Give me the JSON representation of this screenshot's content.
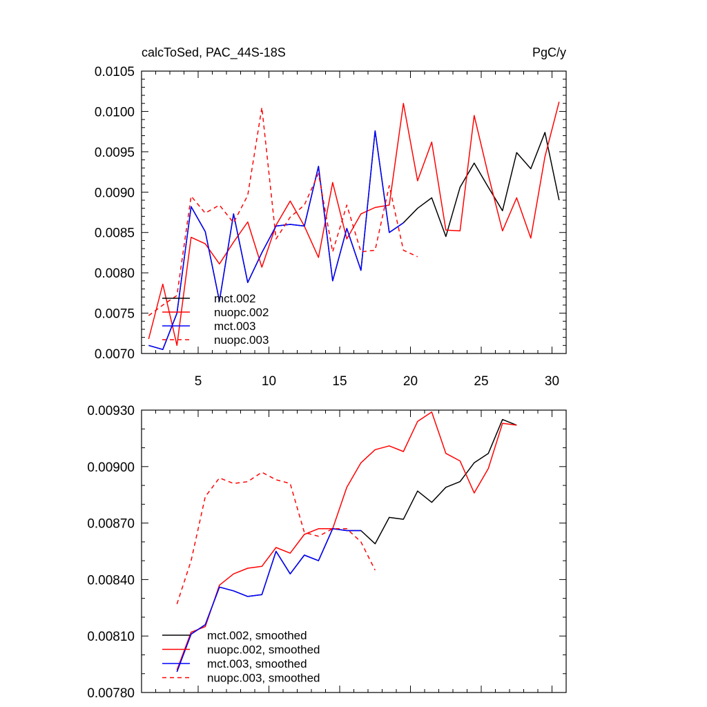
{
  "chart_data": [
    {
      "type": "line",
      "title": "calcToSed, PAC_44S-18S",
      "units": "PgC/y",
      "xlim": [
        1,
        31
      ],
      "ylim": [
        0.007,
        0.0105
      ],
      "xticks": [
        5,
        10,
        15,
        20,
        25,
        30
      ],
      "xtick_labels": [
        "5",
        "10",
        "15",
        "20",
        "25",
        "30"
      ],
      "yticks": [
        0.007,
        0.0075,
        0.008,
        0.0085,
        0.009,
        0.0095,
        0.01,
        0.0105
      ],
      "ytick_labels": [
        "0.0070",
        "0.0075",
        "0.0080",
        "0.0085",
        "0.0090",
        "0.0095",
        "0.0100",
        "0.0105"
      ],
      "legend_position": "bottom-left",
      "series": [
        {
          "name": "mct.002",
          "color": "#000000",
          "dash": "solid",
          "x": [
            1.5,
            2.5,
            3.5,
            4.5,
            5.5,
            6.5,
            7.5,
            8.5,
            9.5,
            10.5,
            11.5,
            12.5,
            13.5,
            14.5,
            15.5,
            16.5,
            17.5,
            18.5,
            19.5,
            20.5,
            21.5,
            22.5,
            23.5,
            24.5,
            25.5,
            26.5,
            27.5,
            28.5,
            29.5,
            30.5
          ],
          "values": [
            0.0071,
            0.00705,
            0.0075,
            0.00882,
            0.00851,
            0.00765,
            0.00873,
            0.00788,
            0.00825,
            0.00858,
            0.0086,
            0.00858,
            0.00932,
            0.0079,
            0.00855,
            0.00803,
            0.00976,
            0.0085,
            0.00862,
            0.0088,
            0.00893,
            0.00845,
            0.00906,
            0.00936,
            0.00906,
            0.00877,
            0.00949,
            0.00929,
            0.00974,
            0.0089
          ]
        },
        {
          "name": "nuopc.002",
          "color": "#ff0000",
          "dash": "solid",
          "x": [
            1.5,
            2.5,
            3.5,
            4.5,
            5.5,
            6.5,
            7.5,
            8.5,
            9.5,
            10.5,
            11.5,
            12.5,
            13.5,
            14.5,
            15.5,
            16.5,
            17.5,
            18.5,
            19.5,
            20.5,
            21.5,
            22.5,
            23.5,
            24.5,
            25.5,
            26.5,
            27.5,
            28.5,
            29.5,
            30.5
          ],
          "values": [
            0.00718,
            0.00786,
            0.0071,
            0.00844,
            0.00836,
            0.00811,
            0.00838,
            0.00863,
            0.00807,
            0.00859,
            0.00889,
            0.00858,
            0.00819,
            0.00912,
            0.00842,
            0.00873,
            0.00881,
            0.00884,
            0.0101,
            0.00914,
            0.00962,
            0.00853,
            0.00852,
            0.00995,
            0.00921,
            0.00852,
            0.00893,
            0.00843,
            0.00944,
            0.01012
          ]
        },
        {
          "name": "mct.003",
          "color": "#0000ff",
          "dash": "solid",
          "x": [
            1.5,
            2.5,
            3.5,
            4.5,
            5.5,
            6.5,
            7.5,
            8.5,
            9.5,
            10.5,
            11.5,
            12.5,
            13.5,
            14.5,
            15.5,
            16.5,
            17.5,
            18.5,
            19.5
          ],
          "values": [
            0.0071,
            0.00705,
            0.0075,
            0.00882,
            0.00851,
            0.00765,
            0.00873,
            0.00788,
            0.00825,
            0.00858,
            0.0086,
            0.00858,
            0.00932,
            0.0079,
            0.00855,
            0.00803,
            0.00976,
            0.0085,
            0.00862
          ]
        },
        {
          "name": "nuopc.003",
          "color": "#ff0000",
          "dash": "dashed",
          "x": [
            1.5,
            2.5,
            3.5,
            4.5,
            5.5,
            6.5,
            7.5,
            8.5,
            9.5,
            10.5,
            11.5,
            12.5,
            13.5,
            14.5,
            15.5,
            16.5,
            17.5,
            18.5,
            19.5,
            20.5
          ],
          "values": [
            0.00747,
            0.0076,
            0.00772,
            0.00895,
            0.00874,
            0.00884,
            0.00862,
            0.00896,
            0.01005,
            0.00842,
            0.00869,
            0.00884,
            0.00923,
            0.00826,
            0.00884,
            0.00826,
            0.00828,
            0.00908,
            0.00828,
            0.0082
          ]
        }
      ]
    },
    {
      "type": "line",
      "title": "",
      "xlim": [
        1,
        31
      ],
      "ylim": [
        0.0078,
        0.0093
      ],
      "xticks": [
        5,
        10,
        15,
        20,
        25,
        30
      ],
      "yticks": [
        0.0078,
        0.0081,
        0.0084,
        0.0087,
        0.009,
        0.0093
      ],
      "ytick_labels": [
        "0.00780",
        "0.00810",
        "0.00840",
        "0.00870",
        "0.00900",
        "0.00930"
      ],
      "legend_position": "bottom-left",
      "series": [
        {
          "name": "mct.002, smoothed",
          "color": "#000000",
          "dash": "solid",
          "x": [
            3.5,
            4.5,
            5.5,
            6.5,
            7.5,
            8.5,
            9.5,
            10.5,
            11.5,
            12.5,
            13.5,
            14.5,
            15.5,
            16.5,
            17.5,
            18.5,
            19.5,
            20.5,
            21.5,
            22.5,
            23.5,
            24.5,
            25.5,
            26.5,
            27.5
          ],
          "values": [
            0.00791,
            0.00811,
            0.00816,
            0.00836,
            0.00834,
            0.00831,
            0.00832,
            0.00855,
            0.00843,
            0.00853,
            0.0085,
            0.00867,
            0.00866,
            0.00866,
            0.00859,
            0.00873,
            0.00872,
            0.00887,
            0.00881,
            0.00889,
            0.00892,
            0.00902,
            0.00907,
            0.00925,
            0.00922
          ]
        },
        {
          "name": "nuopc.002, smoothed",
          "color": "#ff0000",
          "dash": "solid",
          "x": [
            3.5,
            4.5,
            5.5,
            6.5,
            7.5,
            8.5,
            9.5,
            10.5,
            11.5,
            12.5,
            13.5,
            14.5,
            15.5,
            16.5,
            17.5,
            18.5,
            19.5,
            20.5,
            21.5,
            22.5,
            23.5,
            24.5,
            25.5,
            26.5,
            27.5
          ],
          "values": [
            0.00792,
            0.00812,
            0.00815,
            0.00837,
            0.00843,
            0.00846,
            0.00847,
            0.00857,
            0.00854,
            0.00864,
            0.00867,
            0.00867,
            0.00889,
            0.00902,
            0.00909,
            0.00911,
            0.00908,
            0.00924,
            0.00929,
            0.00907,
            0.00903,
            0.00886,
            0.00899,
            0.00923,
            0.00922
          ]
        },
        {
          "name": "mct.003, smoothed",
          "color": "#0000ff",
          "dash": "solid",
          "x": [
            3.5,
            4.5,
            5.5,
            6.5,
            7.5,
            8.5,
            9.5,
            10.5,
            11.5,
            12.5,
            13.5,
            14.5,
            15.5,
            16.5
          ],
          "values": [
            0.00791,
            0.00811,
            0.00816,
            0.00836,
            0.00834,
            0.00831,
            0.00832,
            0.00855,
            0.00843,
            0.00853,
            0.0085,
            0.00867,
            0.00866,
            0.00866
          ]
        },
        {
          "name": "nuopc.003, smoothed",
          "color": "#ff0000",
          "dash": "dashed",
          "x": [
            3.5,
            4.5,
            5.5,
            6.5,
            7.5,
            8.5,
            9.5,
            10.5,
            11.5,
            12.5,
            13.5,
            14.5,
            15.5,
            16.5,
            17.5
          ],
          "values": [
            0.00827,
            0.0085,
            0.00884,
            0.00894,
            0.00891,
            0.00892,
            0.00897,
            0.00893,
            0.00891,
            0.00865,
            0.00863,
            0.00867,
            0.00867,
            0.0086,
            0.00845
          ]
        }
      ]
    }
  ]
}
